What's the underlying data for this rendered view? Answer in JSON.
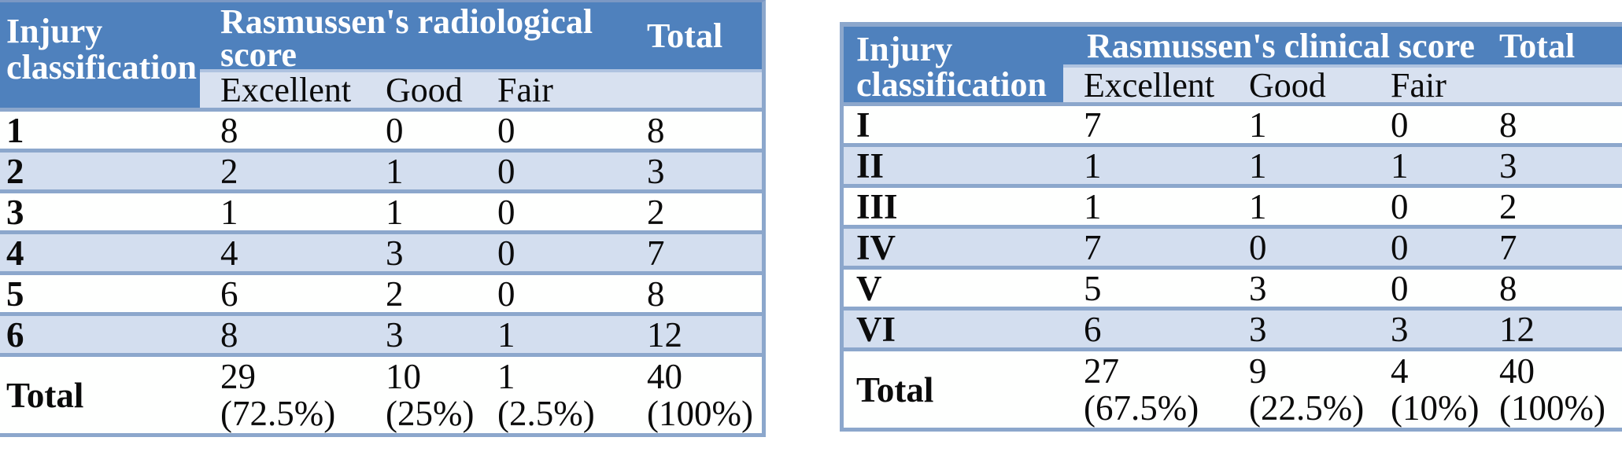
{
  "colors": {
    "header_blue": "#4F81BD",
    "subheader_bg": "#D8E1F0",
    "row_alt_bg": "#D3DEEF",
    "row_bg": "#FEFFFE",
    "border_blue": "#8CA7CC",
    "header_divider": "#AFC3E0"
  },
  "tables": [
    {
      "corner_header": "Injury classification",
      "group_header": "Rasmussen's radiological score",
      "total_header": "Total",
      "sub_headers": [
        "Excellent",
        "Good",
        "Fair"
      ],
      "rows": [
        {
          "label": "1",
          "values": [
            "8",
            "0",
            "0",
            "8"
          ]
        },
        {
          "label": "2",
          "values": [
            "2",
            "1",
            "0",
            "3"
          ]
        },
        {
          "label": "3",
          "values": [
            "1",
            "1",
            "0",
            "2"
          ]
        },
        {
          "label": "4",
          "values": [
            "4",
            "3",
            "0",
            "7"
          ]
        },
        {
          "label": "5",
          "values": [
            "6",
            "2",
            "0",
            "8"
          ]
        },
        {
          "label": "6",
          "values": [
            "8",
            "3",
            "1",
            "12"
          ]
        }
      ],
      "total_row": {
        "label": "Total",
        "cells": [
          {
            "value": "29",
            "pct": "(72.5%)"
          },
          {
            "value": "10",
            "pct": "(25%)"
          },
          {
            "value": "1",
            "pct": "(2.5%)"
          },
          {
            "value": "40",
            "pct": "(100%)"
          }
        ]
      }
    },
    {
      "corner_header": "Injury classification",
      "group_header": "Rasmussen's clinical score",
      "total_header": "Total",
      "sub_headers": [
        "Excellent",
        "Good",
        "Fair"
      ],
      "rows": [
        {
          "label": "I",
          "values": [
            "7",
            "1",
            "0",
            "8"
          ]
        },
        {
          "label": "II",
          "values": [
            "1",
            "1",
            "1",
            "3"
          ]
        },
        {
          "label": "III",
          "values": [
            "1",
            "1",
            "0",
            "2"
          ]
        },
        {
          "label": "IV",
          "values": [
            "7",
            "0",
            "0",
            "7"
          ]
        },
        {
          "label": "V",
          "values": [
            "5",
            "3",
            "0",
            "8"
          ]
        },
        {
          "label": "VI",
          "values": [
            "6",
            "3",
            "3",
            "12"
          ]
        }
      ],
      "total_row": {
        "label": "Total",
        "cells": [
          {
            "value": "27",
            "pct": "(67.5%)"
          },
          {
            "value": "9",
            "pct": "(22.5%)"
          },
          {
            "value": "4",
            "pct": "(10%)"
          },
          {
            "value": "40",
            "pct": "(100%)"
          }
        ]
      }
    }
  ]
}
